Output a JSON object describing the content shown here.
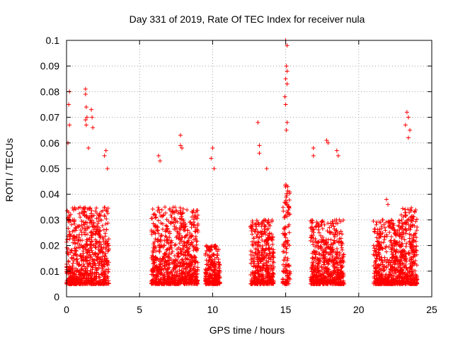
{
  "chart_data": {
    "type": "scatter",
    "title": "Day 331 of 2019, Rate Of TEC Index for receiver nula",
    "xlabel": "GPS time / hours",
    "ylabel": "ROTI / TECUs",
    "xlim": [
      0,
      25
    ],
    "ylim": [
      0,
      0.1
    ],
    "xticks": [
      "0",
      "5",
      "10",
      "15",
      "20",
      "25"
    ],
    "yticks": [
      "0",
      "0.01",
      "0.02",
      "0.03",
      "0.04",
      "0.05",
      "0.06",
      "0.07",
      "0.08",
      "0.09",
      "0.1"
    ],
    "grid": true,
    "marker": "+",
    "color": "#ff0000",
    "clusters": [
      {
        "x_range": [
          0.0,
          2.9
        ],
        "y_typical_max": 0.035,
        "y_peak": 0.081
      },
      {
        "x_range": [
          5.8,
          9.0
        ],
        "y_typical_max": 0.035,
        "y_peak": 0.063
      },
      {
        "x_range": [
          9.5,
          10.5
        ],
        "y_typical_max": 0.02,
        "y_peak": 0.058
      },
      {
        "x_range": [
          12.6,
          14.2
        ],
        "y_typical_max": 0.03,
        "y_peak": 0.068
      },
      {
        "x_range": [
          14.8,
          15.3
        ],
        "y_typical_max": 0.045,
        "y_peak": 0.1
      },
      {
        "x_range": [
          16.7,
          19.0
        ],
        "y_typical_max": 0.03,
        "y_peak": 0.061
      },
      {
        "x_range": [
          21.0,
          23.0
        ],
        "y_typical_max": 0.03,
        "y_peak": 0.038
      },
      {
        "x_range": [
          22.9,
          24.0
        ],
        "y_typical_max": 0.035,
        "y_peak": 0.072
      }
    ],
    "points": [
      [
        0.2,
        0.08
      ],
      [
        0.15,
        0.075
      ],
      [
        0.2,
        0.067
      ],
      [
        0.1,
        0.06
      ],
      [
        1.3,
        0.081
      ],
      [
        1.3,
        0.079
      ],
      [
        1.35,
        0.074
      ],
      [
        1.4,
        0.07
      ],
      [
        1.3,
        0.069
      ],
      [
        1.35,
        0.067
      ],
      [
        1.5,
        0.058
      ],
      [
        1.7,
        0.073
      ],
      [
        1.75,
        0.07
      ],
      [
        1.8,
        0.066
      ],
      [
        2.7,
        0.057
      ],
      [
        2.6,
        0.055
      ],
      [
        2.8,
        0.05
      ],
      [
        7.8,
        0.063
      ],
      [
        7.8,
        0.059
      ],
      [
        7.9,
        0.058
      ],
      [
        6.3,
        0.055
      ],
      [
        6.4,
        0.053
      ],
      [
        10.0,
        0.058
      ],
      [
        9.9,
        0.054
      ],
      [
        10.1,
        0.05
      ],
      [
        13.1,
        0.068
      ],
      [
        13.2,
        0.059
      ],
      [
        13.2,
        0.056
      ],
      [
        13.7,
        0.05
      ],
      [
        15.0,
        0.1
      ],
      [
        15.1,
        0.098
      ],
      [
        15.05,
        0.09
      ],
      [
        15.1,
        0.088
      ],
      [
        15.0,
        0.085
      ],
      [
        15.1,
        0.083
      ],
      [
        14.95,
        0.078
      ],
      [
        15.0,
        0.075
      ],
      [
        15.1,
        0.068
      ],
      [
        15.05,
        0.065
      ],
      [
        17.8,
        0.061
      ],
      [
        17.9,
        0.06
      ],
      [
        16.9,
        0.058
      ],
      [
        16.9,
        0.055
      ],
      [
        18.5,
        0.057
      ],
      [
        18.6,
        0.055
      ],
      [
        23.3,
        0.072
      ],
      [
        23.4,
        0.07
      ],
      [
        23.2,
        0.067
      ],
      [
        23.5,
        0.065
      ],
      [
        23.4,
        0.062
      ],
      [
        21.9,
        0.038
      ],
      [
        22.0,
        0.036
      ]
    ]
  }
}
